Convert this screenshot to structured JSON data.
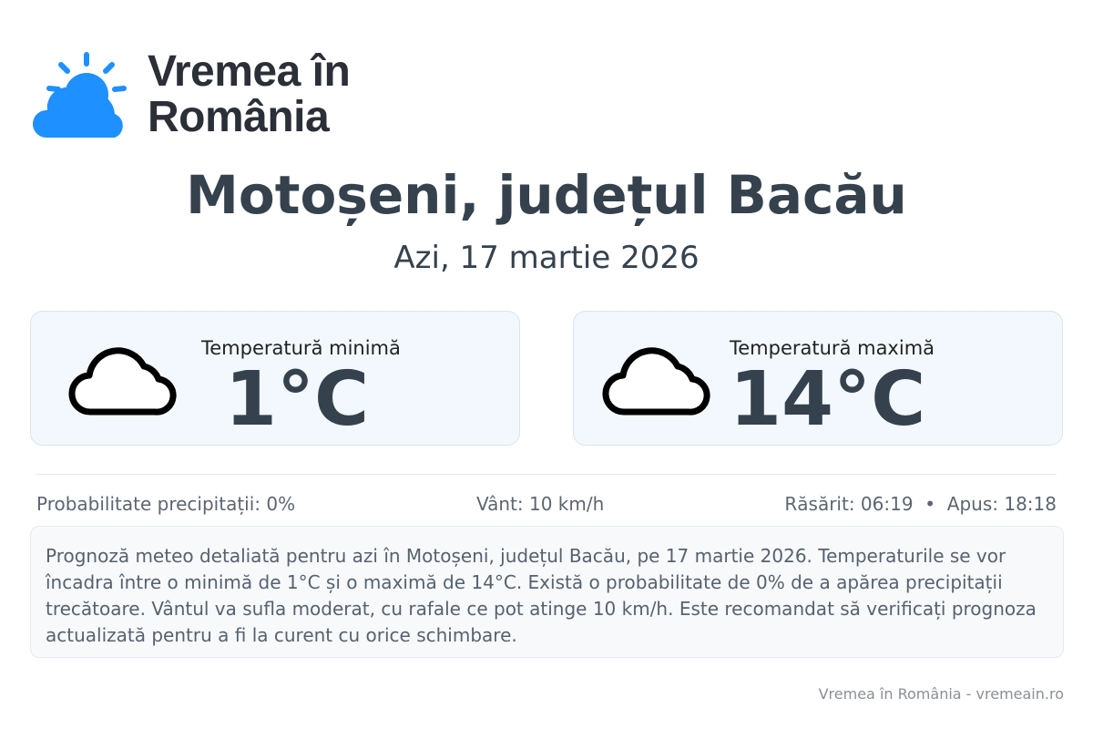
{
  "brand": {
    "name": "Vremea în România",
    "line1": "Vremea în",
    "line2": "România",
    "accent": "#1e90ff"
  },
  "header": {
    "title": "Motoșeni, județul Bacău",
    "date": "Azi, 17 martie 2026"
  },
  "cards": [
    {
      "icon": "cloud-icon",
      "label": "Temperatură minimă",
      "value": "1°C"
    },
    {
      "icon": "cloud-icon",
      "label": "Temperatură maximă",
      "value": "14°C"
    }
  ],
  "info": {
    "precipitation": "Probabilitate precipitații: 0%",
    "wind": "Vânt: 10 km/h",
    "sun": "Răsărit: 06:19  •  Apus: 18:18"
  },
  "description": "Prognoză meteo detaliată pentru azi în Motoșeni, județul Bacău, pe 17 martie 2026. Temperaturile se vor încadra între o minimă de 1°C și o maximă de 14°C. Există o probabilitate de 0% de a apărea precipitații trecătoare. Vântul va sufla moderat, cu rafale ce pot atinge 10 km/h. Este recomandat să verificați prognoza actualizată pentru a fi la curent cu orice schimbare.",
  "footer": "Vremea în România - vremeain.ro"
}
